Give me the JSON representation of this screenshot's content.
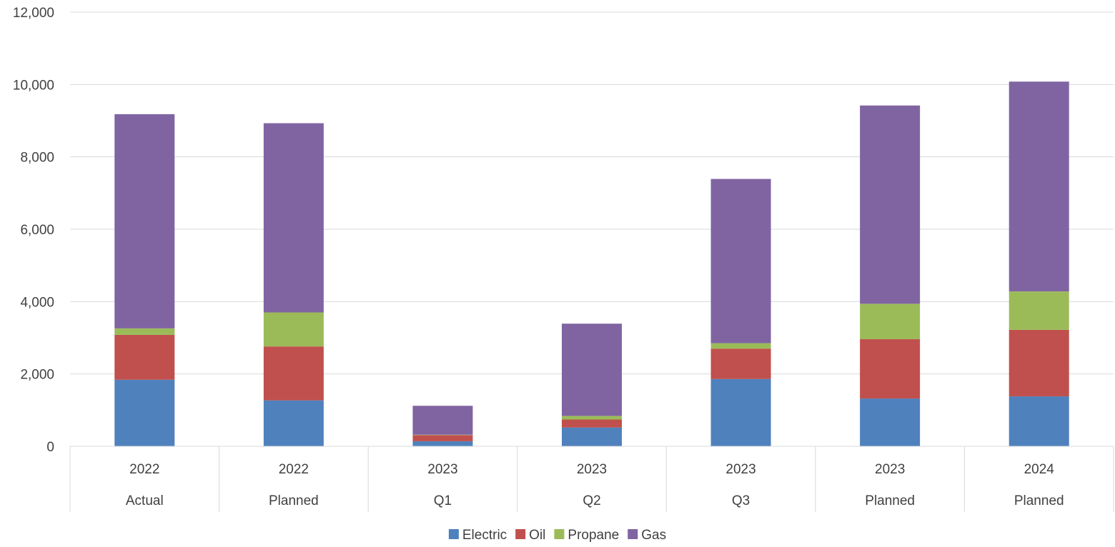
{
  "chart_data": {
    "type": "bar",
    "stacked": true,
    "categories": [
      [
        "2022",
        "Actual"
      ],
      [
        "2022",
        "Planned"
      ],
      [
        "2023",
        "Q1"
      ],
      [
        "2023",
        "Q2"
      ],
      [
        "2023",
        "Q3"
      ],
      [
        "2023",
        "Planned"
      ],
      [
        "2024",
        "Planned"
      ]
    ],
    "series": [
      {
        "name": "Electric",
        "color": "#4F81BD",
        "values": [
          1840,
          1270,
          140,
          520,
          1860,
          1320,
          1380
        ]
      },
      {
        "name": "Oil",
        "color": "#C0504D",
        "values": [
          1240,
          1490,
          170,
          220,
          840,
          1640,
          1840
        ]
      },
      {
        "name": "Propane",
        "color": "#9BBB59",
        "values": [
          180,
          940,
          10,
          100,
          150,
          980,
          1060
        ]
      },
      {
        "name": "Gas",
        "color": "#8064A2",
        "values": [
          5920,
          5230,
          800,
          2550,
          4540,
          5480,
          5800
        ]
      }
    ],
    "title": "",
    "xlabel": "",
    "ylabel": "",
    "ylim": [
      0,
      12000
    ],
    "yticks": [
      0,
      2000,
      4000,
      6000,
      8000,
      10000,
      12000
    ],
    "ytick_labels": [
      "0",
      "2,000",
      "4,000",
      "6,000",
      "8,000",
      "10,000",
      "12,000"
    ],
    "grid": true,
    "legend_position": "bottom"
  }
}
